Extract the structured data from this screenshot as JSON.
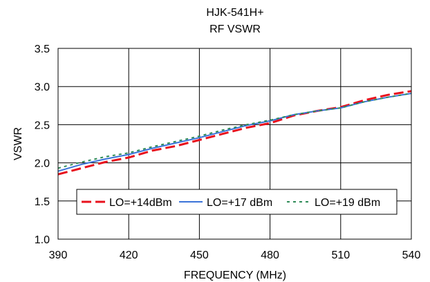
{
  "chart_data": {
    "type": "line",
    "title": "HJK-541H+",
    "subtitle": "RF VSWR",
    "xlabel": "FREQUENCY (MHz)",
    "ylabel": "VSWR",
    "xlim": [
      390,
      540
    ],
    "ylim": [
      1.0,
      3.5
    ],
    "xticks": [
      390,
      420,
      450,
      480,
      510,
      540
    ],
    "yticks": [
      1.0,
      1.5,
      2.0,
      2.5,
      3.0,
      3.5
    ],
    "xtick_labels": [
      "390",
      "420",
      "450",
      "480",
      "510",
      "540"
    ],
    "ytick_labels": [
      "1.0",
      "1.5",
      "2.0",
      "2.5",
      "3.0",
      "3.5"
    ],
    "grid": true,
    "legend_position": "lower-center",
    "series": [
      {
        "name": "LO=+14dBm",
        "color": "#e8101c",
        "dash": "long-dash",
        "x": [
          390,
          400,
          410,
          420,
          430,
          440,
          450,
          460,
          470,
          480,
          490,
          500,
          510,
          520,
          530,
          540
        ],
        "y": [
          1.85,
          1.93,
          2.01,
          2.07,
          2.16,
          2.22,
          2.3,
          2.38,
          2.46,
          2.52,
          2.62,
          2.68,
          2.73,
          2.82,
          2.89,
          2.94
        ]
      },
      {
        "name": "LO=+17 dBm",
        "color": "#3a73d8",
        "dash": "solid",
        "x": [
          390,
          400,
          410,
          420,
          430,
          440,
          450,
          460,
          470,
          480,
          490,
          500,
          510,
          520,
          530,
          540
        ],
        "y": [
          1.89,
          1.98,
          2.05,
          2.11,
          2.19,
          2.26,
          2.33,
          2.41,
          2.49,
          2.55,
          2.63,
          2.68,
          2.72,
          2.8,
          2.86,
          2.91
        ]
      },
      {
        "name": "LO=+19 dBm",
        "color": "#2e8b57",
        "dash": "dotted",
        "x": [
          390,
          400,
          410,
          420,
          430,
          440,
          450,
          460,
          470,
          480,
          490,
          500,
          510,
          520,
          530,
          540
        ],
        "y": [
          1.93,
          2.01,
          2.08,
          2.13,
          2.21,
          2.28,
          2.35,
          2.43,
          2.5,
          2.56,
          2.63,
          2.68,
          2.72,
          2.8,
          2.86,
          2.91
        ]
      }
    ]
  }
}
